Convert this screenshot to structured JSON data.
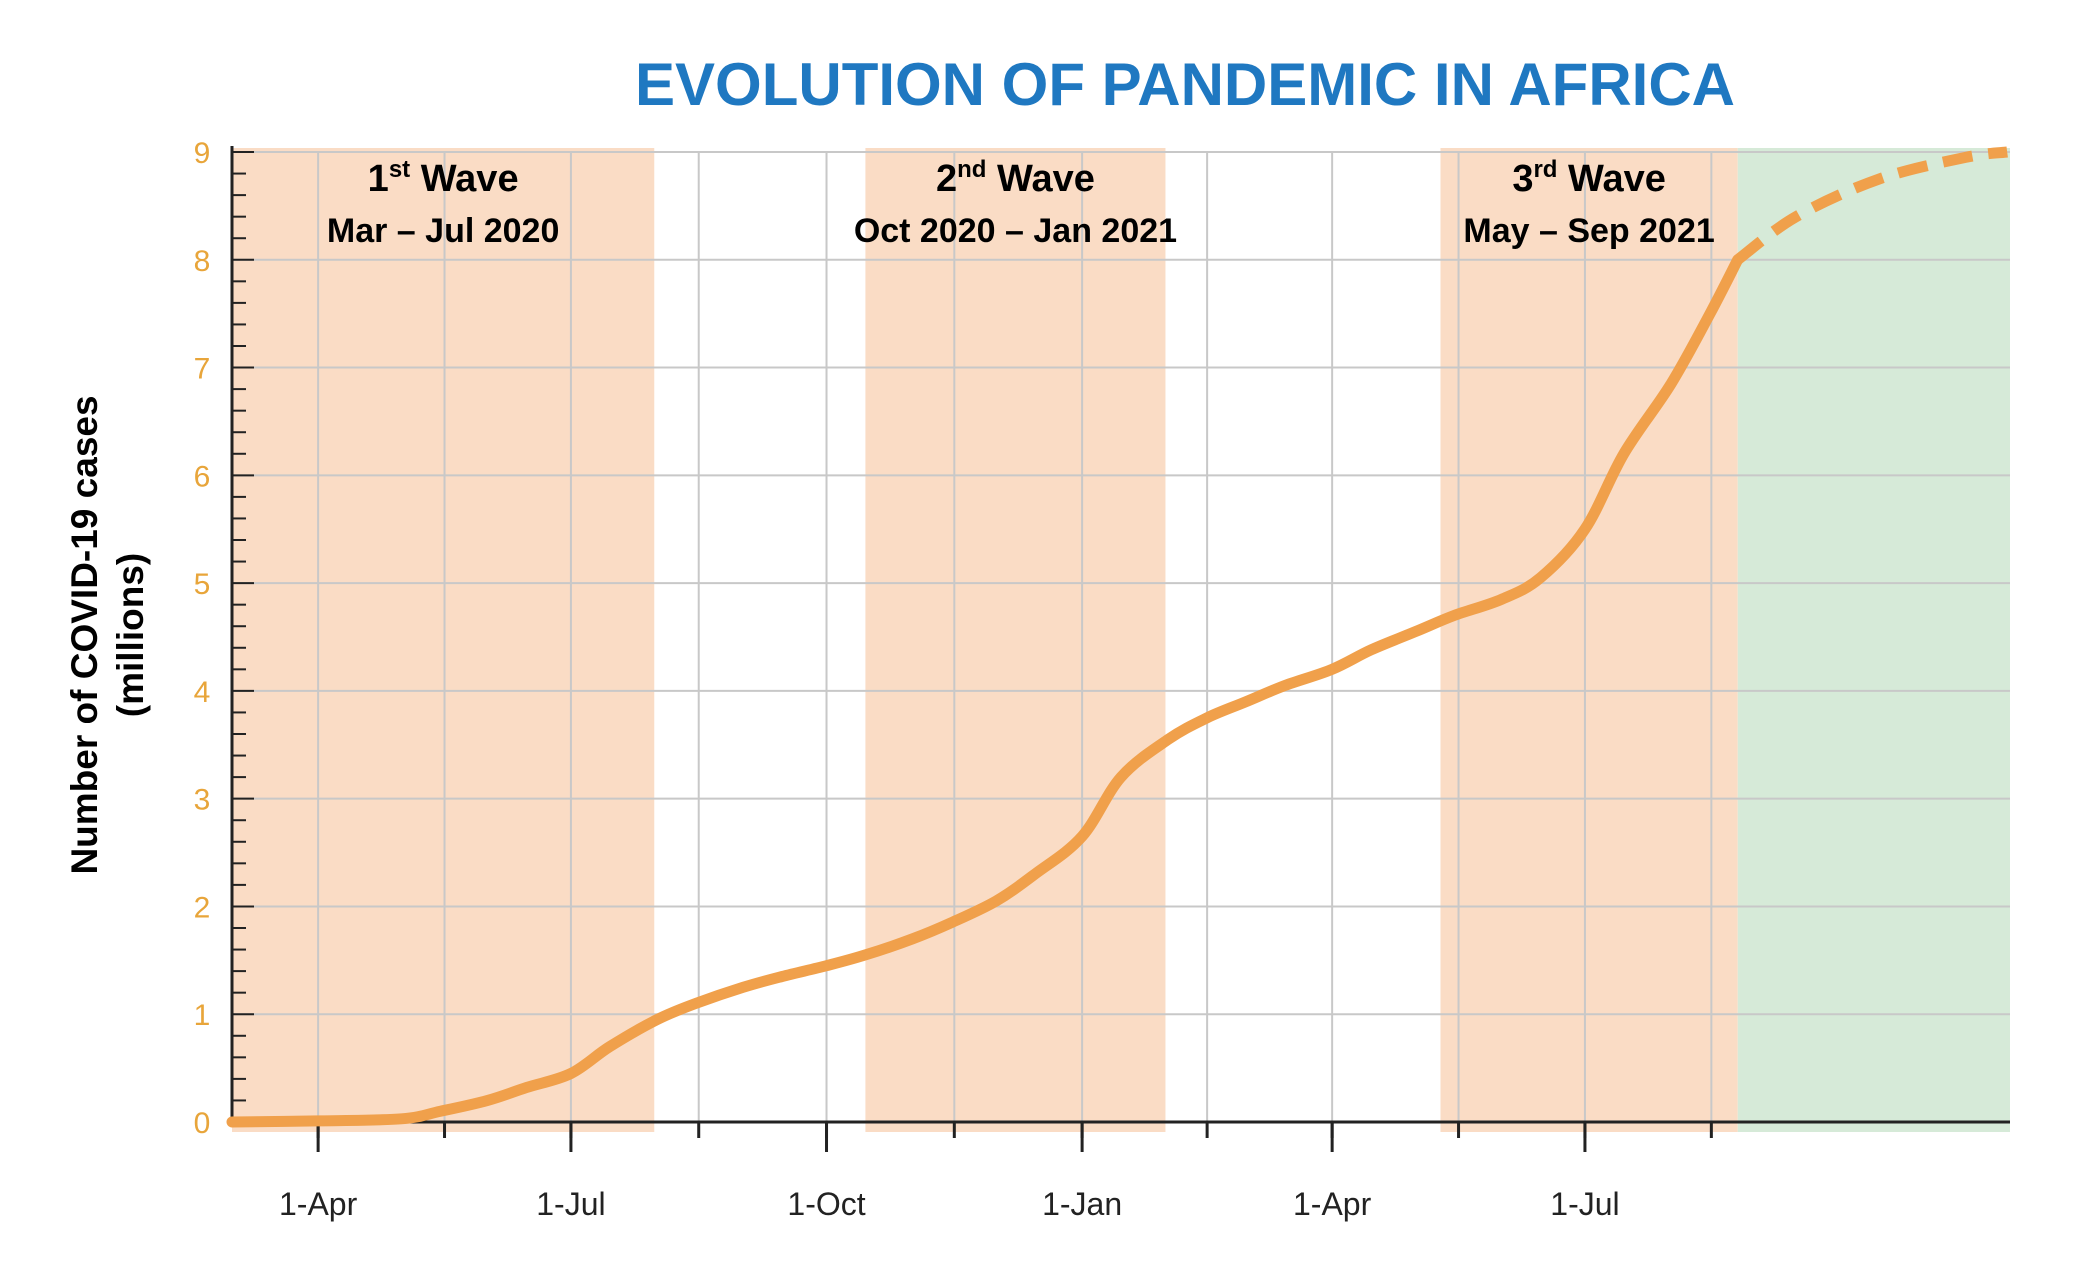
{
  "chart_data": {
    "type": "line",
    "title": "EVOLUTION OF PANDEMIC IN AFRICA",
    "ylabel_line1": "Number of COVID-19 cases",
    "ylabel_line2": "(millions)",
    "ylim": [
      0,
      9
    ],
    "yticks": [
      0,
      1,
      2,
      3,
      4,
      5,
      6,
      7,
      8,
      9
    ],
    "xlim": [
      "2020-03-01",
      "2021-12-01"
    ],
    "xticks": [
      {
        "date": "2020-04-01",
        "label": "1-Apr"
      },
      {
        "date": "2020-07-01",
        "label": "1-Jul"
      },
      {
        "date": "2020-10-01",
        "label": "1-Oct"
      },
      {
        "date": "2021-01-01",
        "label": "1-Jan"
      },
      {
        "date": "2021-04-01",
        "label": "1-Apr"
      },
      {
        "date": "2021-07-01",
        "label": "1-Jul"
      }
    ],
    "grid": true,
    "waves": [
      {
        "name": "1st Wave",
        "num": "1",
        "sup": "st",
        "word": "Wave",
        "period": "Mar – Jul 2020",
        "start": "2020-03-01",
        "end": "2020-07-31"
      },
      {
        "name": "2nd Wave",
        "num": "2",
        "sup": "nd",
        "word": "Wave",
        "period": "Oct 2020 – Jan 2021",
        "start": "2020-10-15",
        "end": "2021-01-31"
      },
      {
        "name": "3rd Wave",
        "num": "3",
        "sup": "rd",
        "word": "Wave",
        "period": "May – Sep 2021",
        "start": "2021-05-10",
        "end": "2021-08-25"
      }
    ],
    "projection_region": {
      "start": "2021-08-25",
      "end": "2021-12-01"
    },
    "series": [
      {
        "style": "solid",
        "points": [
          {
            "x": "2020-03-01",
            "y": 0.0
          },
          {
            "x": "2020-04-01",
            "y": 0.01
          },
          {
            "x": "2020-05-01",
            "y": 0.03
          },
          {
            "x": "2020-05-15",
            "y": 0.1
          },
          {
            "x": "2020-06-01",
            "y": 0.2
          },
          {
            "x": "2020-06-15",
            "y": 0.32
          },
          {
            "x": "2020-07-01",
            "y": 0.45
          },
          {
            "x": "2020-07-15",
            "y": 0.7
          },
          {
            "x": "2020-08-01",
            "y": 0.95
          },
          {
            "x": "2020-08-15",
            "y": 1.1
          },
          {
            "x": "2020-09-01",
            "y": 1.25
          },
          {
            "x": "2020-09-15",
            "y": 1.35
          },
          {
            "x": "2020-10-01",
            "y": 1.45
          },
          {
            "x": "2020-10-15",
            "y": 1.55
          },
          {
            "x": "2020-11-01",
            "y": 1.7
          },
          {
            "x": "2020-11-15",
            "y": 1.85
          },
          {
            "x": "2020-12-01",
            "y": 2.05
          },
          {
            "x": "2020-12-15",
            "y": 2.3
          },
          {
            "x": "2021-01-01",
            "y": 2.65
          },
          {
            "x": "2021-01-15",
            "y": 3.2
          },
          {
            "x": "2021-02-01",
            "y": 3.55
          },
          {
            "x": "2021-02-15",
            "y": 3.75
          },
          {
            "x": "2021-03-01",
            "y": 3.9
          },
          {
            "x": "2021-03-15",
            "y": 4.05
          },
          {
            "x": "2021-04-01",
            "y": 4.2
          },
          {
            "x": "2021-04-15",
            "y": 4.38
          },
          {
            "x": "2021-05-01",
            "y": 4.55
          },
          {
            "x": "2021-05-15",
            "y": 4.7
          },
          {
            "x": "2021-06-01",
            "y": 4.85
          },
          {
            "x": "2021-06-15",
            "y": 5.05
          },
          {
            "x": "2021-07-01",
            "y": 5.5
          },
          {
            "x": "2021-07-15",
            "y": 6.2
          },
          {
            "x": "2021-08-01",
            "y": 6.85
          },
          {
            "x": "2021-08-15",
            "y": 7.5
          },
          {
            "x": "2021-08-25",
            "y": 8.0
          }
        ]
      },
      {
        "style": "dashed",
        "points": [
          {
            "x": "2021-08-25",
            "y": 8.0
          },
          {
            "x": "2021-09-15",
            "y": 8.4
          },
          {
            "x": "2021-10-15",
            "y": 8.75
          },
          {
            "x": "2021-11-15",
            "y": 8.95
          },
          {
            "x": "2021-11-30",
            "y": 9.0
          }
        ]
      }
    ],
    "colors": {
      "line": "#f0a04b",
      "wave_band": "#fadcc5",
      "projection_band": "#d6ead8",
      "title": "#1f78c1",
      "y_tick_label": "#e8a53a"
    }
  }
}
